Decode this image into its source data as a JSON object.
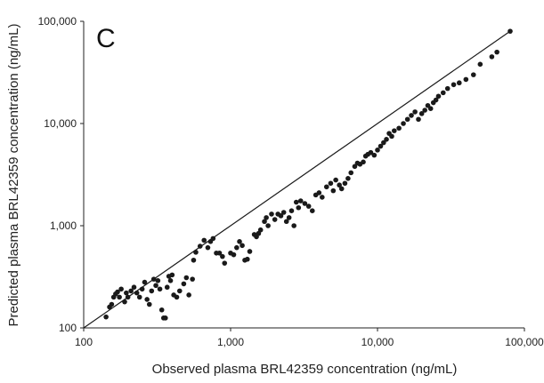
{
  "chart_data": {
    "type": "scatter",
    "panel_label": "C",
    "xlabel": "Observed plasma BRL42359 concentration (ng/mL)",
    "ylabel": "Predicted plasma BRL42359 concentration (ng/mL)",
    "x_scale": "log",
    "y_scale": "log",
    "xlim": [
      100,
      100000
    ],
    "ylim": [
      100,
      100000
    ],
    "x_ticks": [
      100,
      1000,
      10000,
      100000
    ],
    "y_ticks": [
      100,
      1000,
      10000,
      100000
    ],
    "x_tick_labels": [
      "100",
      "1,000",
      "10,000",
      "100,000"
    ],
    "y_tick_labels": [
      "100",
      "1,000",
      "10,000",
      "100,000"
    ],
    "grid": false,
    "marker_color": "#1a1a1a",
    "line_color": "#1a1a1a",
    "identity_line": {
      "from": [
        100,
        100
      ],
      "to": [
        80000,
        80000
      ]
    },
    "points": [
      [
        142,
        128
      ],
      [
        150,
        160
      ],
      [
        155,
        170
      ],
      [
        160,
        200
      ],
      [
        165,
        215
      ],
      [
        170,
        225
      ],
      [
        175,
        200
      ],
      [
        180,
        240
      ],
      [
        190,
        180
      ],
      [
        195,
        220
      ],
      [
        200,
        200
      ],
      [
        210,
        230
      ],
      [
        220,
        250
      ],
      [
        230,
        220
      ],
      [
        240,
        200
      ],
      [
        250,
        240
      ],
      [
        260,
        280
      ],
      [
        270,
        190
      ],
      [
        280,
        170
      ],
      [
        290,
        230
      ],
      [
        300,
        300
      ],
      [
        310,
        260
      ],
      [
        320,
        290
      ],
      [
        330,
        240
      ],
      [
        340,
        150
      ],
      [
        350,
        125
      ],
      [
        360,
        125
      ],
      [
        370,
        250
      ],
      [
        380,
        320
      ],
      [
        390,
        290
      ],
      [
        400,
        330
      ],
      [
        410,
        210
      ],
      [
        430,
        200
      ],
      [
        450,
        230
      ],
      [
        480,
        270
      ],
      [
        500,
        310
      ],
      [
        520,
        210
      ],
      [
        550,
        300
      ],
      [
        560,
        460
      ],
      [
        580,
        550
      ],
      [
        620,
        630
      ],
      [
        660,
        720
      ],
      [
        700,
        610
      ],
      [
        730,
        700
      ],
      [
        760,
        750
      ],
      [
        800,
        540
      ],
      [
        840,
        540
      ],
      [
        880,
        500
      ],
      [
        910,
        430
      ],
      [
        1000,
        540
      ],
      [
        1050,
        520
      ],
      [
        1100,
        610
      ],
      [
        1150,
        700
      ],
      [
        1200,
        640
      ],
      [
        1250,
        460
      ],
      [
        1300,
        470
      ],
      [
        1350,
        560
      ],
      [
        1450,
        820
      ],
      [
        1500,
        780
      ],
      [
        1550,
        840
      ],
      [
        1600,
        910
      ],
      [
        1700,
        1100
      ],
      [
        1750,
        1200
      ],
      [
        1800,
        1000
      ],
      [
        1900,
        1300
      ],
      [
        2000,
        1150
      ],
      [
        2100,
        1300
      ],
      [
        2200,
        1250
      ],
      [
        2300,
        1350
      ],
      [
        2400,
        1100
      ],
      [
        2500,
        1200
      ],
      [
        2600,
        1400
      ],
      [
        2700,
        1000
      ],
      [
        2800,
        1700
      ],
      [
        2900,
        1500
      ],
      [
        3000,
        1750
      ],
      [
        3200,
        1650
      ],
      [
        3400,
        1550
      ],
      [
        3600,
        1400
      ],
      [
        3800,
        2000
      ],
      [
        4000,
        2100
      ],
      [
        4200,
        1900
      ],
      [
        4500,
        2400
      ],
      [
        4800,
        2600
      ],
      [
        5000,
        2200
      ],
      [
        5200,
        2800
      ],
      [
        5500,
        2500
      ],
      [
        5700,
        2300
      ],
      [
        6000,
        2600
      ],
      [
        6300,
        2900
      ],
      [
        6600,
        3300
      ],
      [
        7000,
        3800
      ],
      [
        7300,
        4100
      ],
      [
        7600,
        4000
      ],
      [
        8000,
        4200
      ],
      [
        8300,
        4800
      ],
      [
        8600,
        5000
      ],
      [
        9000,
        5200
      ],
      [
        9500,
        4900
      ],
      [
        10000,
        5500
      ],
      [
        10500,
        6000
      ],
      [
        11000,
        6500
      ],
      [
        11500,
        7000
      ],
      [
        12000,
        8000
      ],
      [
        12500,
        7500
      ],
      [
        13000,
        8500
      ],
      [
        14000,
        9000
      ],
      [
        15000,
        10000
      ],
      [
        16000,
        11000
      ],
      [
        17000,
        12000
      ],
      [
        18000,
        13000
      ],
      [
        19000,
        11000
      ],
      [
        20000,
        12500
      ],
      [
        21000,
        13500
      ],
      [
        22000,
        15000
      ],
      [
        23000,
        14000
      ],
      [
        24000,
        16000
      ],
      [
        25000,
        17000
      ],
      [
        26000,
        18500
      ],
      [
        28000,
        20000
      ],
      [
        30000,
        22000
      ],
      [
        33000,
        24000
      ],
      [
        36000,
        25000
      ],
      [
        40000,
        27000
      ],
      [
        45000,
        30000
      ],
      [
        50000,
        38000
      ],
      [
        60000,
        45000
      ],
      [
        65000,
        50000
      ],
      [
        80000,
        80000
      ]
    ]
  }
}
